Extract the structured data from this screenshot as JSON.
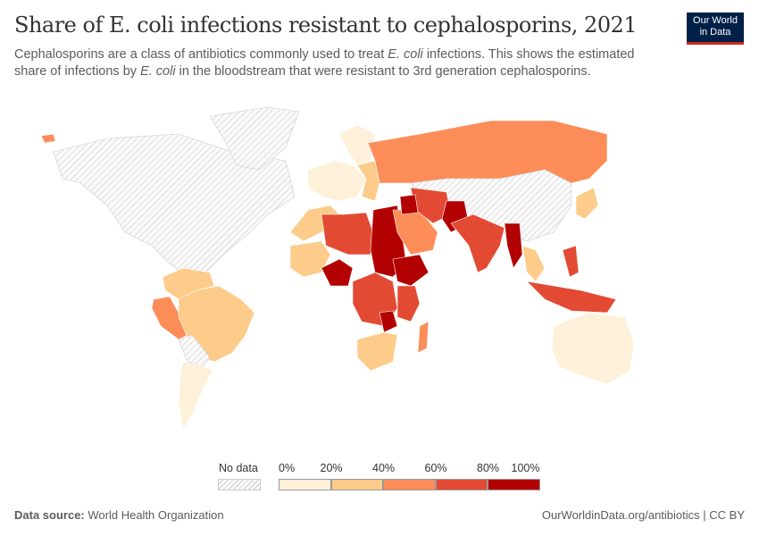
{
  "header": {
    "title": "Share of E. coli infections resistant to cephalosporins, 2021",
    "subtitle_parts": [
      "Cephalosporins are a class of antibiotics commonly used to treat ",
      "E. coli",
      " infections. This shows the estimated share of infections by ",
      "E. coli",
      " in the bloodstream that were resistant to 3rd generation cephalosporins."
    ],
    "logo_line1": "Our World",
    "logo_line2": "in Data"
  },
  "legend": {
    "no_data_label": "No data",
    "ticks": [
      "0%",
      "20%",
      "40%",
      "60%",
      "80%",
      "100%"
    ],
    "bins": [
      "#fef0d9",
      "#fdcc8a",
      "#fc8d59",
      "#e34a33",
      "#b30000"
    ]
  },
  "map_regions": [
    {
      "name": "north-america",
      "bin": null
    },
    {
      "name": "greenland",
      "bin": null
    },
    {
      "name": "iceland",
      "bin": 2
    },
    {
      "name": "colombia-venezuela",
      "bin": 1
    },
    {
      "name": "peru",
      "bin": 2
    },
    {
      "name": "brazil",
      "bin": 1
    },
    {
      "name": "bolivia-paraguay",
      "bin": null
    },
    {
      "name": "argentina-chile",
      "bin": 0
    },
    {
      "name": "western-europe",
      "bin": 0
    },
    {
      "name": "scandinavia",
      "bin": 0
    },
    {
      "name": "eastern-europe",
      "bin": 1
    },
    {
      "name": "russia",
      "bin": 2
    },
    {
      "name": "china-mongolia",
      "bin": null
    },
    {
      "name": "japan",
      "bin": 1
    },
    {
      "name": "north-africa-west",
      "bin": 1
    },
    {
      "name": "libya-algeria",
      "bin": 3
    },
    {
      "name": "egypt-sudan",
      "bin": 4
    },
    {
      "name": "west-africa",
      "bin": 1
    },
    {
      "name": "nigeria",
      "bin": 4
    },
    {
      "name": "ethiopia",
      "bin": 4
    },
    {
      "name": "central-africa",
      "bin": 3
    },
    {
      "name": "east-africa",
      "bin": 3
    },
    {
      "name": "zimbabwe-malawi",
      "bin": 4
    },
    {
      "name": "southern-africa",
      "bin": 1
    },
    {
      "name": "madagascar",
      "bin": 2
    },
    {
      "name": "arabia",
      "bin": 2
    },
    {
      "name": "iran",
      "bin": 3
    },
    {
      "name": "iraq",
      "bin": 4
    },
    {
      "name": "pakistan",
      "bin": 4
    },
    {
      "name": "india",
      "bin": 3
    },
    {
      "name": "myanmar",
      "bin": 4
    },
    {
      "name": "southeast-asia",
      "bin": 1
    },
    {
      "name": "indonesia",
      "bin": 3
    },
    {
      "name": "philippines",
      "bin": 3
    },
    {
      "name": "australia",
      "bin": 0
    }
  ],
  "footer": {
    "source_label": "Data source:",
    "source": "World Health Organization",
    "link": "OurWorldinData.org/antibiotics | CC BY"
  }
}
